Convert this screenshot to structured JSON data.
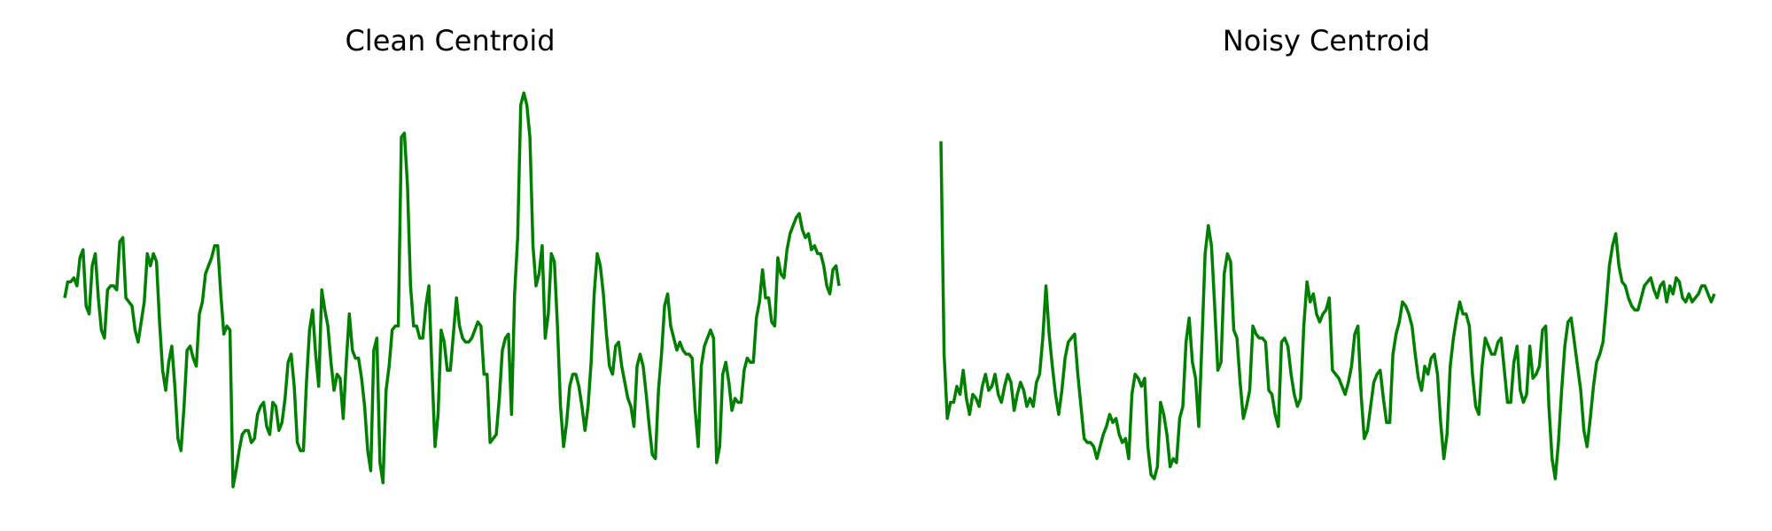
{
  "chart_data": [
    {
      "type": "line",
      "title": "Clean Centroid",
      "xlabel": "",
      "ylabel": "",
      "axes_visible": false,
      "grid": false,
      "color": "#008000",
      "ylim": [
        0,
        100
      ],
      "series": [
        {
          "values": [
            47,
            51,
            51,
            52,
            50,
            57,
            59,
            45,
            43,
            55,
            58,
            47,
            39,
            37,
            49,
            50,
            50,
            49,
            61,
            62,
            47,
            46,
            45,
            39,
            36,
            41,
            46,
            58,
            55,
            58,
            56,
            41,
            29,
            24,
            31,
            35,
            25,
            12,
            9,
            20,
            34,
            35,
            32,
            30,
            43,
            46,
            53,
            55,
            57,
            60,
            60,
            48,
            38,
            40,
            39,
            0,
            4,
            9,
            13,
            14,
            14,
            11,
            12,
            18,
            20,
            21,
            15,
            13,
            21,
            20,
            14,
            16,
            22,
            31,
            33,
            25,
            11,
            9,
            9,
            26,
            39,
            44,
            33,
            25,
            49,
            44,
            40,
            31,
            24,
            28,
            27,
            17,
            31,
            43,
            34,
            32,
            32,
            27,
            20,
            9,
            4,
            34,
            37,
            6,
            1,
            24,
            30,
            39,
            40,
            40,
            87,
            88,
            75,
            50,
            40,
            40,
            37,
            37,
            45,
            50,
            29,
            10,
            18,
            39,
            36,
            29,
            29,
            38,
            47,
            40,
            37,
            36,
            36,
            37,
            39,
            41,
            40,
            28,
            28,
            11,
            12,
            13,
            22,
            34,
            37,
            38,
            18,
            48,
            62,
            95,
            98,
            95,
            87,
            60,
            50,
            53,
            60,
            37,
            43,
            58,
            56,
            40,
            20,
            10,
            16,
            25,
            28,
            28,
            25,
            20,
            14,
            20,
            31,
            48,
            58,
            55,
            48,
            38,
            30,
            28,
            35,
            36,
            30,
            26,
            22,
            20,
            15,
            30,
            33,
            30,
            23,
            15,
            8,
            7,
            24,
            33,
            45,
            48,
            40,
            37,
            34,
            36,
            34,
            33,
            33,
            32,
            19,
            10,
            30,
            35,
            37,
            39,
            37,
            6,
            10,
            28,
            31,
            26,
            19,
            22,
            21,
            21,
            29,
            32,
            31,
            31,
            42,
            46,
            54,
            47,
            47,
            41,
            40,
            57,
            53,
            52,
            59,
            63,
            65,
            67,
            68,
            64,
            62,
            63,
            59,
            60,
            58,
            58,
            55,
            50,
            48,
            54,
            55,
            50
          ]
        }
      ]
    },
    {
      "type": "line",
      "title": "Noisy Centroid",
      "xlabel": "",
      "ylabel": "",
      "axes_visible": false,
      "grid": false,
      "color": "#008000",
      "ylim": [
        0,
        100
      ],
      "series": [
        {
          "values": [
            86,
            33,
            17,
            21,
            21,
            25,
            23,
            29,
            22,
            18,
            23,
            22,
            20,
            25,
            28,
            24,
            25,
            28,
            23,
            21,
            25,
            28,
            26,
            19,
            23,
            26,
            24,
            20,
            22,
            20,
            26,
            28,
            37,
            50,
            38,
            30,
            23,
            18,
            24,
            32,
            36,
            37,
            38,
            28,
            20,
            12,
            11,
            11,
            10,
            7,
            10,
            13,
            15,
            18,
            16,
            17,
            13,
            11,
            12,
            7,
            23,
            28,
            27,
            25,
            27,
            10,
            3,
            2,
            5,
            21,
            18,
            13,
            5,
            7,
            6,
            17,
            20,
            36,
            42,
            31,
            27,
            15,
            36,
            58,
            65,
            60,
            45,
            29,
            31,
            53,
            58,
            56,
            39,
            37,
            26,
            17,
            20,
            24,
            40,
            38,
            37,
            37,
            36,
            24,
            23,
            18,
            15,
            36,
            37,
            35,
            28,
            23,
            20,
            22,
            40,
            51,
            46,
            48,
            43,
            41,
            43,
            44,
            47,
            29,
            28,
            27,
            25,
            23,
            26,
            30,
            38,
            40,
            23,
            12,
            14,
            20,
            26,
            28,
            29,
            22,
            16,
            16,
            33,
            38,
            41,
            46,
            45,
            43,
            40,
            33,
            27,
            24,
            30,
            28,
            32,
            33,
            28,
            16,
            7,
            13,
            30,
            37,
            42,
            46,
            43,
            43,
            40,
            28,
            20,
            18,
            30,
            37,
            35,
            33,
            33,
            36,
            37,
            29,
            21,
            21,
            31,
            35,
            24,
            21,
            23,
            35,
            27,
            28,
            30,
            39,
            40,
            20,
            7,
            2,
            11,
            24,
            35,
            41,
            42,
            36,
            30,
            24,
            14,
            10,
            17,
            25,
            31,
            33,
            36,
            45,
            55,
            60,
            63,
            55,
            51,
            50,
            47,
            45,
            44,
            44,
            47,
            50,
            51,
            52,
            49,
            47,
            50,
            51,
            46,
            50,
            48,
            52,
            51,
            47,
            46,
            48,
            46,
            47,
            48,
            50,
            50,
            48,
            46,
            48
          ]
        }
      ]
    }
  ]
}
